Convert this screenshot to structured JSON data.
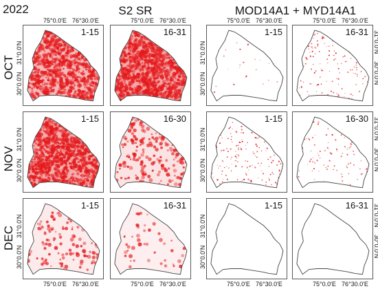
{
  "year": "2022",
  "groups": [
    {
      "title": "S2 SR",
      "style": "s2"
    },
    {
      "title": "MOD14A1 + MYD14A1",
      "style": "modis"
    }
  ],
  "rows": [
    {
      "label": "OCT",
      "periods": [
        "1-15",
        "16-31"
      ],
      "intensity": {
        "s2": [
          0.75,
          0.95
        ],
        "modis": [
          0.08,
          0.45
        ]
      }
    },
    {
      "label": "NOV",
      "periods": [
        "1-15",
        "16-30"
      ],
      "intensity": {
        "s2": [
          0.9,
          0.2
        ],
        "modis": [
          0.55,
          0.35
        ]
      }
    },
    {
      "label": "DEC",
      "periods": [
        "1-15",
        "16-31"
      ],
      "intensity": {
        "s2": [
          0.12,
          0.05
        ],
        "modis": [
          0.0,
          0.0
        ]
      }
    }
  ],
  "axes": {
    "lon_ticks": [
      "75°0.0'E",
      "76°30.0'E"
    ],
    "lat_ticks": [
      "31°0.0'N",
      "30°0.0'N"
    ]
  },
  "colors": {
    "hotspot": "#e41a1c",
    "outline": "#444444"
  }
}
